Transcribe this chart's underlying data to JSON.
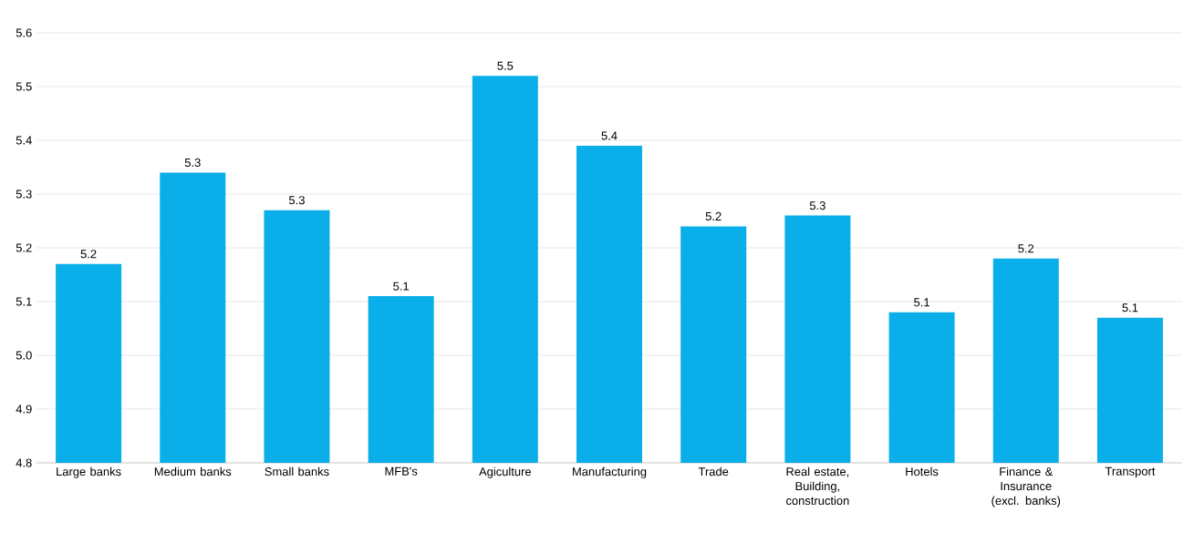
{
  "chart_data": {
    "type": "bar",
    "categories": [
      "Large banks",
      "Medium banks",
      "Small banks",
      "MFB's",
      "Agiculture",
      "Manufacturing",
      "Trade",
      "Real estate, Building, construction",
      "Hotels",
      "Finance & Insurance (excl. banks)",
      "Transport"
    ],
    "values": [
      5.17,
      5.34,
      5.27,
      5.11,
      5.52,
      5.39,
      5.24,
      5.26,
      5.08,
      5.18,
      5.07
    ],
    "value_labels": [
      "5.2",
      "5.3",
      "5.3",
      "5.1",
      "5.5",
      "5.4",
      "5.2",
      "5.3",
      "5.1",
      "5.2",
      "5.1"
    ],
    "color": "#0aaee8",
    "ylim": [
      4.8,
      5.6
    ],
    "yticks": [
      4.8,
      4.9,
      {
        "value": 5,
        "label": "5.0"
      },
      5.1,
      5.2,
      5.3,
      5.4,
      5.5,
      5.6
    ],
    "grid": "y"
  }
}
